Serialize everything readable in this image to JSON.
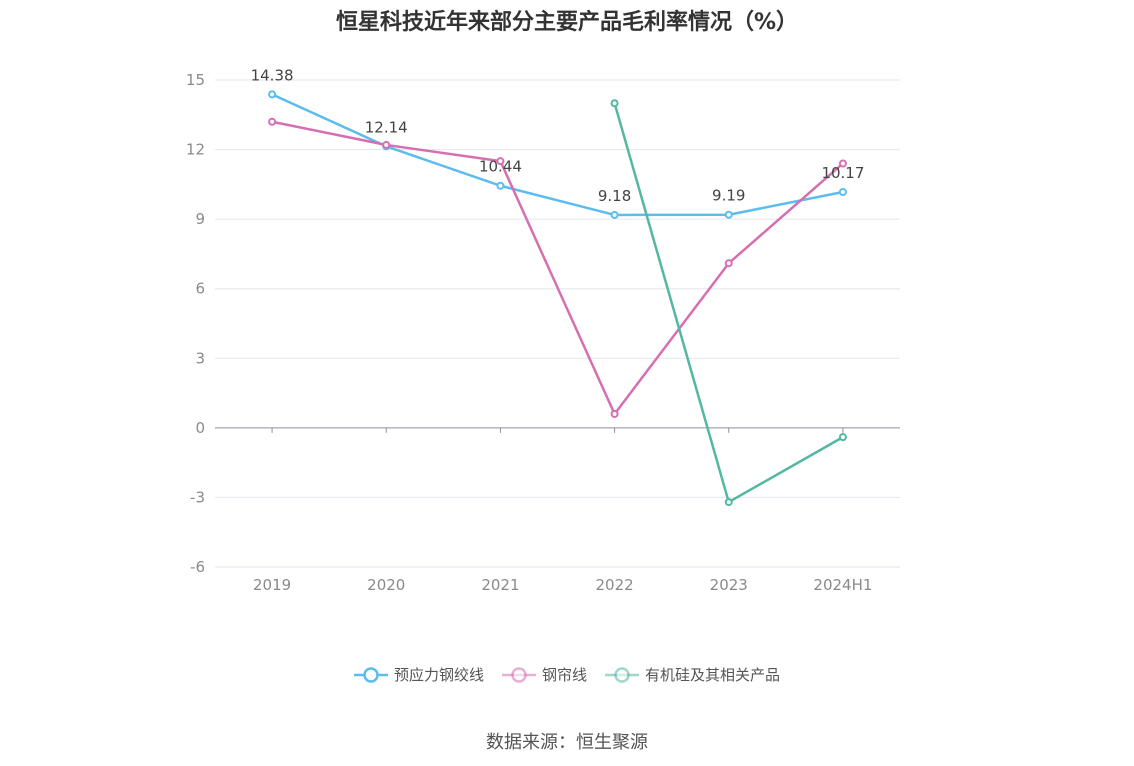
{
  "chart_data": {
    "type": "line",
    "title": "恒星科技近年来部分主要产品毛利率情况（%）",
    "categories": [
      "2019",
      "2020",
      "2021",
      "2022",
      "2023",
      "2024H1"
    ],
    "ylim": [
      -6,
      15
    ],
    "yticks": [
      15,
      12,
      9,
      6,
      3,
      0,
      -3,
      -6
    ],
    "grid": true,
    "legend_position": "bottom",
    "series": [
      {
        "name": "预应力钢绞线",
        "color": "#5bbcee",
        "values": [
          14.38,
          12.14,
          10.44,
          9.18,
          9.19,
          10.17
        ],
        "data_labels": [
          "14.38",
          "12.14",
          "10.44",
          "9.18",
          "9.19",
          "10.17"
        ]
      },
      {
        "name": "钢帘线",
        "color": "#d66fb2",
        "values": [
          13.2,
          12.2,
          11.5,
          0.6,
          7.1,
          11.4
        ],
        "data_labels": []
      },
      {
        "name": "有机硅及其相关产品",
        "color": "#52b8a2",
        "values": [
          null,
          null,
          null,
          14.0,
          -3.2,
          -0.4
        ],
        "data_labels": []
      }
    ]
  },
  "source": "数据来源：恒生聚源"
}
